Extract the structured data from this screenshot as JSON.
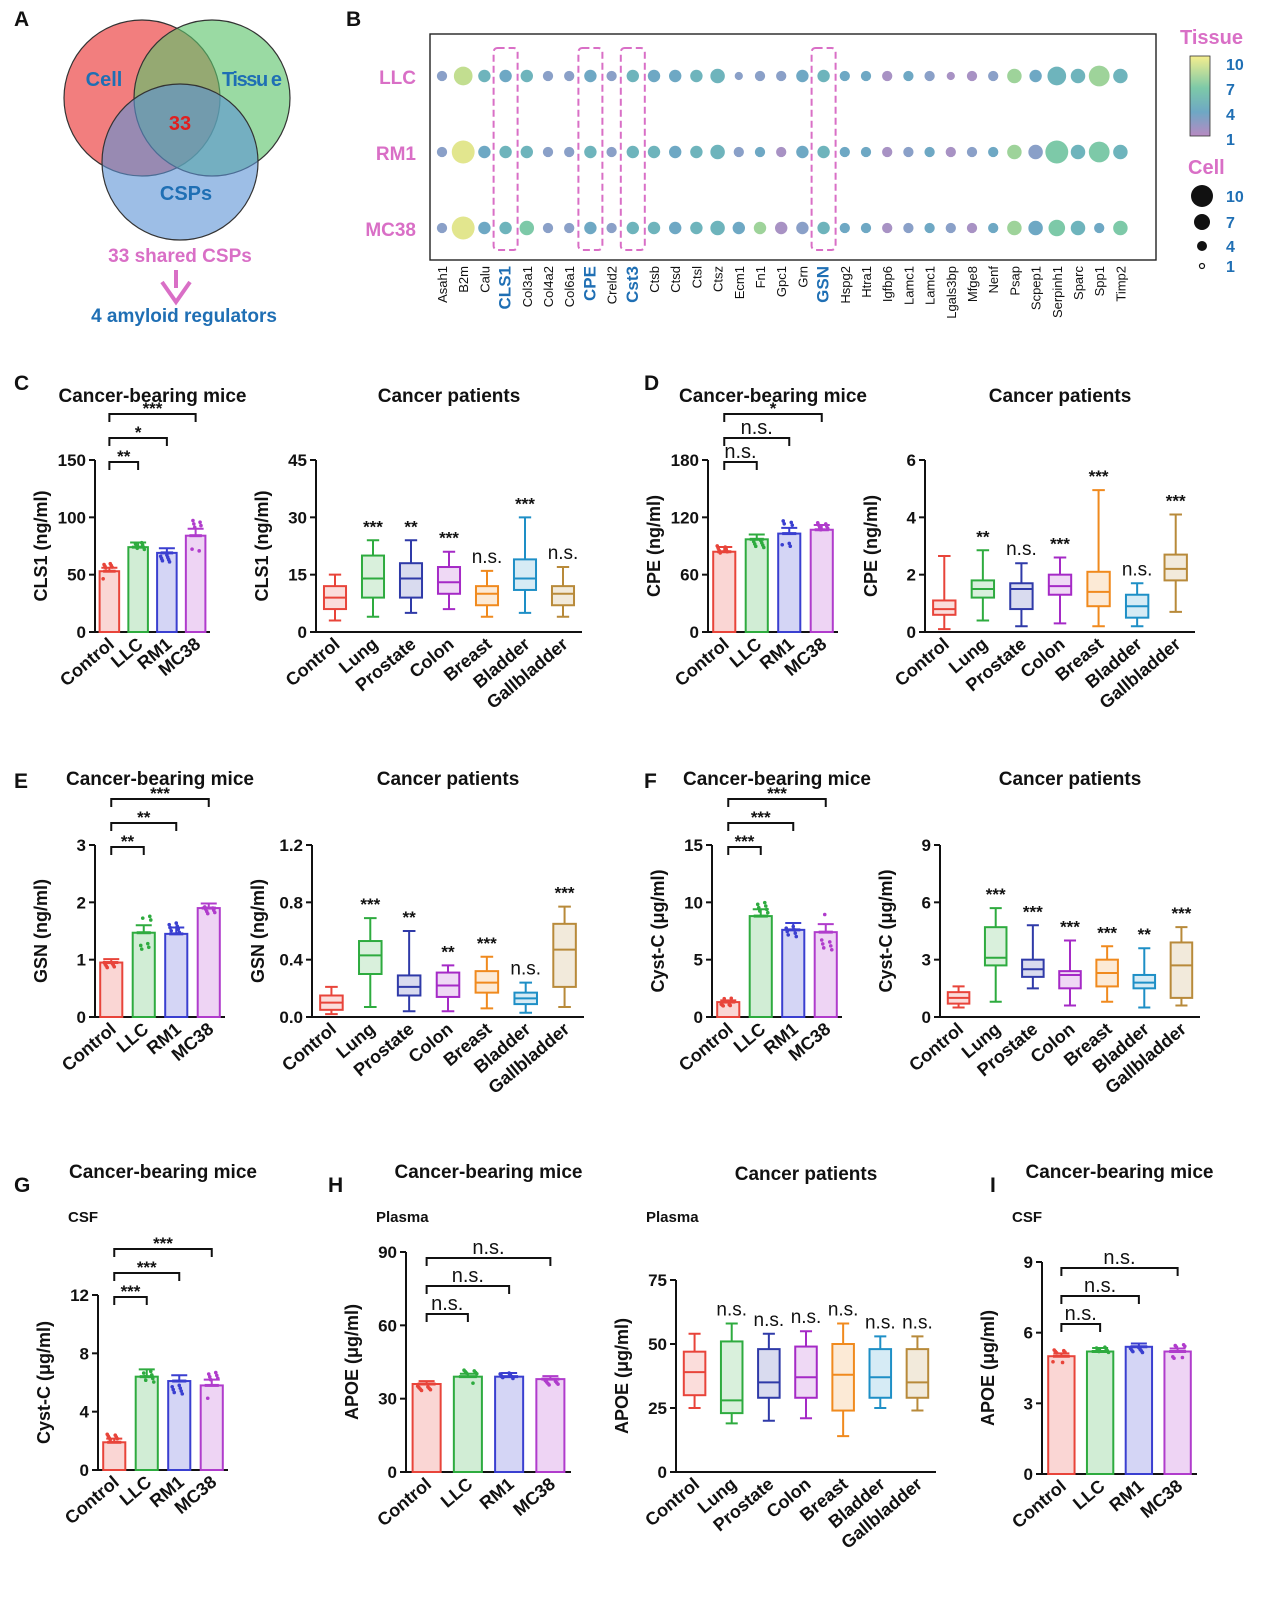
{
  "colors": {
    "control": "#e8443a",
    "llc": "#2eab3f",
    "rm1": "#3a3fd0",
    "mc38": "#b03ccc",
    "prostate": "#2f3aa8",
    "colon": "#a52ac6",
    "breast": "#f08a1e",
    "bladder": "#1e8fc6",
    "gallbladder": "#b88a3a",
    "label_pink": "#d96fc6",
    "label_blue": "#1f6fb4"
  },
  "groups_mice": [
    "Control",
    "LLC",
    "RM1",
    "MC38"
  ],
  "groups_patients": [
    "Control",
    "Lung",
    "Prostate",
    "Colon",
    "Breast",
    "Bladder",
    "Gallbladder"
  ],
  "panel_letters": {
    "A": "A",
    "B": "B",
    "C": "C",
    "D": "D",
    "E": "E",
    "F": "F",
    "G": "G",
    "H": "H",
    "I": "I"
  },
  "panelA": {
    "sets": [
      "Cell",
      "Tissu e",
      "CSPs"
    ],
    "intersection": "33",
    "arrow_top": "33 shared CSPs",
    "arrow_bottom": "4 amyloid regulators"
  },
  "panelB": {
    "rows": [
      "LLC",
      "RM1",
      "MC38"
    ],
    "genes": [
      "Asah1",
      "B2m",
      "Calu",
      "CLS1",
      "Col3a1",
      "Col4a2",
      "Col6a1",
      "CPE",
      "Creld2",
      "Cst3",
      "Ctsb",
      "Ctsd",
      "Ctsl",
      "Ctsz",
      "Ecm1",
      "Fn1",
      "Gpc1",
      "Grn",
      "GSN",
      "Hspg2",
      "Htra1",
      "Igfbp6",
      "Lamc1",
      "Lamc1",
      "Lgals3bp",
      "Mfge8",
      "Nenf",
      "Psap",
      "Scpep1",
      "Serpinh1",
      "Sparc",
      "Spp1",
      "Timp2"
    ],
    "highlighted_genes": [
      "CLS1",
      "CPE",
      "Cst3",
      "GSN"
    ],
    "tissue_legend_title": "Tissue",
    "tissue_ticks": [
      "10",
      "7",
      "4",
      "1"
    ],
    "cell_legend_title": "Cell",
    "cell_ticks": [
      "10",
      "7",
      "4",
      "1"
    ],
    "tissue_values": [
      [
        3,
        8,
        5,
        4,
        5,
        3,
        3,
        4,
        3,
        5,
        4,
        4,
        5,
        5,
        3,
        3,
        3,
        4,
        5,
        4,
        4,
        2,
        4,
        3,
        2,
        2,
        3,
        7,
        4,
        5,
        5,
        7,
        5
      ],
      [
        3,
        9,
        4,
        5,
        5,
        3,
        3,
        5,
        3,
        5,
        5,
        4,
        5,
        5,
        3,
        4,
        2,
        4,
        5,
        4,
        4,
        2,
        3,
        4,
        2,
        3,
        4,
        7,
        3,
        6,
        5,
        6,
        5
      ],
      [
        3,
        9,
        4,
        5,
        6,
        3,
        3,
        4,
        3,
        5,
        5,
        4,
        5,
        5,
        4,
        7,
        2,
        3,
        5,
        4,
        4,
        2,
        3,
        4,
        3,
        2,
        4,
        7,
        4,
        6,
        5,
        4,
        6
      ]
    ],
    "cell_values": [
      [
        3,
        7,
        4,
        4,
        4,
        3,
        3,
        4,
        3,
        4,
        4,
        4,
        4,
        5,
        2,
        3,
        3,
        4,
        4,
        3,
        3,
        3,
        3,
        3,
        2,
        3,
        3,
        5,
        4,
        7,
        5,
        8,
        5
      ],
      [
        3,
        9,
        4,
        4,
        4,
        3,
        3,
        4,
        3,
        4,
        4,
        4,
        4,
        5,
        3,
        3,
        3,
        4,
        4,
        3,
        3,
        3,
        3,
        3,
        3,
        3,
        3,
        5,
        5,
        9,
        5,
        8,
        5
      ],
      [
        3,
        9,
        4,
        4,
        5,
        3,
        3,
        4,
        3,
        4,
        4,
        4,
        4,
        5,
        4,
        4,
        4,
        4,
        4,
        3,
        3,
        3,
        3,
        3,
        3,
        3,
        3,
        5,
        5,
        6,
        5,
        3,
        5
      ]
    ]
  },
  "chart_data": [
    {
      "id": "C-mice",
      "type": "bar",
      "title": "Cancer-bearing mice",
      "ylabel": "CLS1 (ng/ml)",
      "ylim": [
        0,
        150
      ],
      "yticks": [
        0,
        50,
        100,
        150
      ],
      "categories": [
        "Control",
        "LLC",
        "RM1",
        "MC38"
      ],
      "values": [
        53,
        74,
        69,
        84
      ],
      "errors": [
        3,
        4,
        4,
        6
      ],
      "comparisons": [
        {
          "to": "LLC",
          "label": "**"
        },
        {
          "to": "RM1",
          "label": "*"
        },
        {
          "to": "MC38",
          "label": "***"
        }
      ]
    },
    {
      "id": "C-patients",
      "type": "box",
      "title": "Cancer patients",
      "ylabel": "CLS1 (ng/ml)",
      "ylim": [
        0,
        45
      ],
      "yticks": [
        0,
        15,
        30,
        45
      ],
      "categories": [
        "Control",
        "Lung",
        "Prostate",
        "Colon",
        "Breast",
        "Bladder",
        "Gallbladder"
      ],
      "boxes": [
        [
          3,
          6,
          9,
          12,
          15
        ],
        [
          4,
          9,
          14,
          20,
          24
        ],
        [
          5,
          9,
          14,
          18,
          24
        ],
        [
          6,
          10,
          13,
          17,
          21
        ],
        [
          4,
          7,
          10,
          12,
          16
        ],
        [
          5,
          11,
          14,
          19,
          30
        ],
        [
          4,
          7,
          10,
          12,
          17
        ]
      ],
      "sig": [
        "",
        "***",
        "**",
        "***",
        "n.s.",
        "***",
        "n.s."
      ]
    },
    {
      "id": "D-mice",
      "type": "bar",
      "title": "Cancer-bearing mice",
      "ylabel": "CPE (ng/ml)",
      "ylim": [
        0,
        180
      ],
      "yticks": [
        0,
        60,
        120,
        180
      ],
      "categories": [
        "Control",
        "LLC",
        "RM1",
        "MC38"
      ],
      "values": [
        84,
        97,
        103,
        107
      ],
      "errors": [
        5,
        5,
        6,
        5
      ],
      "comparisons": [
        {
          "to": "LLC",
          "label": "n.s."
        },
        {
          "to": "RM1",
          "label": "n.s."
        },
        {
          "to": "MC38",
          "label": "*"
        }
      ]
    },
    {
      "id": "D-patients",
      "type": "box",
      "title": "Cancer patients",
      "ylabel": "CPE (ng/ml)",
      "ylim": [
        0,
        6
      ],
      "yticks": [
        0,
        2,
        4,
        6
      ],
      "categories": [
        "Control",
        "Lung",
        "Prostate",
        "Colon",
        "Breast",
        "Bladder",
        "Gallbladder"
      ],
      "boxes": [
        [
          0.1,
          0.6,
          0.8,
          1.1,
          2.65
        ],
        [
          0.4,
          1.2,
          1.5,
          1.8,
          2.85
        ],
        [
          0.2,
          0.8,
          1.5,
          1.7,
          2.4
        ],
        [
          0.3,
          1.3,
          1.6,
          2.0,
          2.6
        ],
        [
          0.2,
          0.9,
          1.4,
          2.1,
          4.95
        ],
        [
          0.2,
          0.5,
          0.9,
          1.3,
          1.7
        ],
        [
          0.7,
          1.8,
          2.2,
          2.7,
          4.1
        ]
      ],
      "sig": [
        "",
        "**",
        "n.s.",
        "***",
        "***",
        "n.s.",
        "***"
      ]
    },
    {
      "id": "E-mice",
      "type": "bar",
      "title": "Cancer-bearing mice",
      "ylabel": "GSN (ng/ml)",
      "ylim": [
        0,
        3
      ],
      "yticks": [
        0,
        1,
        2,
        3
      ],
      "categories": [
        "Control",
        "LLC",
        "RM1",
        "MC38"
      ],
      "values": [
        0.95,
        1.47,
        1.45,
        1.9
      ],
      "errors": [
        0.06,
        0.13,
        0.11,
        0.08
      ],
      "comparisons": [
        {
          "to": "LLC",
          "label": "**"
        },
        {
          "to": "RM1",
          "label": "**"
        },
        {
          "to": "MC38",
          "label": "***"
        }
      ]
    },
    {
      "id": "E-patients",
      "type": "box",
      "title": "Cancer patients",
      "ylabel": "GSN (ng/ml)",
      "ylim": [
        0,
        1.2
      ],
      "yticks": [
        0.0,
        0.4,
        0.8,
        1.2
      ],
      "categories": [
        "Control",
        "Lung",
        "Prostate",
        "Colon",
        "Breast",
        "Bladder",
        "Gallbladder"
      ],
      "boxes": [
        [
          0.02,
          0.05,
          0.1,
          0.15,
          0.21
        ],
        [
          0.07,
          0.3,
          0.43,
          0.53,
          0.69
        ],
        [
          0.04,
          0.15,
          0.21,
          0.29,
          0.6
        ],
        [
          0.04,
          0.14,
          0.22,
          0.31,
          0.36
        ],
        [
          0.06,
          0.17,
          0.24,
          0.32,
          0.42
        ],
        [
          0.03,
          0.09,
          0.13,
          0.17,
          0.24
        ],
        [
          0.07,
          0.21,
          0.47,
          0.65,
          0.77
        ]
      ],
      "sig": [
        "",
        "***",
        "**",
        "**",
        "***",
        "n.s.",
        "***"
      ]
    },
    {
      "id": "F-mice",
      "type": "bar",
      "title": "Cancer-bearing mice",
      "ylabel": "Cyst-C (μg/ml)",
      "ylim": [
        0,
        15
      ],
      "yticks": [
        0,
        5,
        10,
        15
      ],
      "categories": [
        "Control",
        "LLC",
        "RM1",
        "MC38"
      ],
      "values": [
        1.3,
        8.8,
        7.6,
        7.4
      ],
      "errors": [
        0.15,
        0.6,
        0.6,
        0.7
      ],
      "comparisons": [
        {
          "to": "LLC",
          "label": "***"
        },
        {
          "to": "RM1",
          "label": "***"
        },
        {
          "to": "MC38",
          "label": "***"
        }
      ]
    },
    {
      "id": "F-patients",
      "type": "box",
      "title": "Cancer patients",
      "ylabel": "Cyst-C (μg/ml)",
      "ylim": [
        0,
        9
      ],
      "yticks": [
        0,
        3,
        6,
        9
      ],
      "categories": [
        "Control",
        "Lung",
        "Prostate",
        "Colon",
        "Breast",
        "Bladder",
        "Gallbladder"
      ],
      "boxes": [
        [
          0.5,
          0.7,
          1.0,
          1.3,
          1.6
        ],
        [
          0.8,
          2.7,
          3.1,
          4.7,
          5.7
        ],
        [
          1.5,
          2.1,
          2.5,
          3.0,
          4.8
        ],
        [
          0.6,
          1.5,
          2.2,
          2.4,
          4.0
        ],
        [
          0.8,
          1.6,
          2.3,
          3.0,
          3.7
        ],
        [
          0.5,
          1.5,
          1.8,
          2.2,
          3.6
        ],
        [
          0.6,
          1.0,
          2.7,
          3.9,
          4.7
        ]
      ],
      "sig": [
        "",
        "***",
        "***",
        "***",
        "***",
        "**",
        "***"
      ]
    },
    {
      "id": "G-mice",
      "type": "bar",
      "title": "Cancer-bearing mice",
      "subtitle": "CSF",
      "ylabel": "Cyst-C (μg/ml)",
      "ylim": [
        0,
        12
      ],
      "yticks": [
        0,
        4,
        8,
        12
      ],
      "categories": [
        "Control",
        "LLC",
        "RM1",
        "MC38"
      ],
      "values": [
        1.9,
        6.4,
        6.1,
        5.8
      ],
      "errors": [
        0.25,
        0.5,
        0.4,
        0.4
      ],
      "comparisons": [
        {
          "to": "LLC",
          "label": "***"
        },
        {
          "to": "RM1",
          "label": "***"
        },
        {
          "to": "MC38",
          "label": "***"
        }
      ]
    },
    {
      "id": "H-mice",
      "type": "bar",
      "title": "Cancer-bearing mice",
      "subtitle": "Plasma",
      "ylabel": "APOE (μg/ml)",
      "ylim": [
        0,
        90
      ],
      "yticks": [
        0,
        30,
        60,
        90
      ],
      "categories": [
        "Control",
        "LLC",
        "RM1",
        "MC38"
      ],
      "values": [
        36,
        39,
        39,
        38
      ],
      "errors": [
        1.2,
        1.2,
        1.5,
        1.2
      ],
      "comparisons": [
        {
          "to": "LLC",
          "label": "n.s."
        },
        {
          "to": "RM1",
          "label": "n.s."
        },
        {
          "to": "MC38",
          "label": "n.s."
        }
      ]
    },
    {
      "id": "H-patients",
      "type": "box",
      "title": "Cancer patients",
      "subtitle": "Plasma",
      "ylabel": "APOE (μg/ml)",
      "ylim": [
        0,
        75
      ],
      "yticks": [
        0,
        25,
        50,
        75
      ],
      "categories": [
        "Control",
        "Lung",
        "Prostate",
        "Colon",
        "Breast",
        "Bladder",
        "Gallbladder"
      ],
      "boxes": [
        [
          25,
          30,
          39,
          47,
          54
        ],
        [
          19,
          23,
          28,
          51,
          58
        ],
        [
          20,
          29,
          35,
          48,
          54
        ],
        [
          21,
          29,
          37,
          49,
          55
        ],
        [
          14,
          24,
          38,
          50,
          58
        ],
        [
          25,
          29,
          37,
          48,
          53
        ],
        [
          24,
          29,
          35,
          48,
          53
        ]
      ],
      "sig": [
        "",
        "n.s.",
        "n.s.",
        "n.s.",
        "n.s.",
        "n.s.",
        "n.s."
      ]
    },
    {
      "id": "I-mice",
      "type": "bar",
      "title": "Cancer-bearing mice",
      "subtitle": "CSF",
      "ylabel": "APOE (μg/ml)",
      "ylim": [
        0,
        9
      ],
      "yticks": [
        0,
        3,
        6,
        9
      ],
      "categories": [
        "Control",
        "LLC",
        "RM1",
        "MC38"
      ],
      "values": [
        5.0,
        5.2,
        5.4,
        5.2
      ],
      "errors": [
        0.12,
        0.15,
        0.14,
        0.13
      ],
      "comparisons": [
        {
          "to": "LLC",
          "label": "n.s."
        },
        {
          "to": "RM1",
          "label": "n.s."
        },
        {
          "to": "MC38",
          "label": "n.s."
        }
      ]
    }
  ]
}
